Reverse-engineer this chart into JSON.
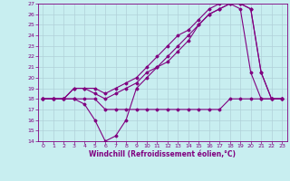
{
  "xlabel": "Windchill (Refroidissement éolien,°C)",
  "xlim": [
    -0.5,
    23.5
  ],
  "ylim": [
    14,
    27
  ],
  "xticks": [
    0,
    1,
    2,
    3,
    4,
    5,
    6,
    7,
    8,
    9,
    10,
    11,
    12,
    13,
    14,
    15,
    16,
    17,
    18,
    19,
    20,
    21,
    22,
    23
  ],
  "yticks": [
    14,
    15,
    16,
    17,
    18,
    19,
    20,
    21,
    22,
    23,
    24,
    25,
    26,
    27
  ],
  "background_color": "#c8eef0",
  "grid_color": "#b0d0d8",
  "line_color": "#800080",
  "line1_x": [
    0,
    1,
    2,
    3,
    4,
    5,
    6,
    7,
    8,
    9,
    10,
    11,
    12,
    13,
    14,
    15,
    16,
    17,
    18,
    19,
    20,
    21,
    22,
    23
  ],
  "line1_y": [
    18,
    18,
    18,
    18,
    18,
    18,
    17,
    17,
    17,
    17,
    17,
    17,
    17,
    17,
    17,
    17,
    17,
    17,
    18,
    18,
    18,
    18,
    18,
    18
  ],
  "line2_x": [
    0,
    1,
    2,
    3,
    4,
    5,
    6,
    7,
    8,
    9,
    10,
    11,
    12,
    13,
    14,
    15,
    16,
    17,
    18,
    19,
    20,
    21,
    22,
    23
  ],
  "line2_y": [
    18,
    18,
    18,
    18,
    17.5,
    16,
    14,
    14.5,
    16,
    19,
    20,
    21,
    21.5,
    22.5,
    23.5,
    25,
    26,
    26.5,
    27,
    26.5,
    20.5,
    18,
    18,
    18
  ],
  "line3_x": [
    0,
    1,
    2,
    3,
    4,
    5,
    6,
    7,
    8,
    9,
    10,
    11,
    12,
    13,
    14,
    15,
    16,
    17,
    18,
    19,
    20,
    21,
    22,
    23
  ],
  "line3_y": [
    18,
    18,
    18,
    19,
    19,
    18.5,
    18,
    18.5,
    19,
    19.5,
    20.5,
    21,
    22,
    23,
    24,
    25,
    26,
    26.5,
    27,
    27,
    26.5,
    20.5,
    18,
    18
  ],
  "line4_x": [
    0,
    1,
    2,
    3,
    4,
    5,
    6,
    7,
    8,
    9,
    10,
    11,
    12,
    13,
    14,
    15,
    16,
    17,
    18,
    19,
    20,
    21,
    22,
    23
  ],
  "line4_y": [
    18,
    18,
    18,
    19,
    19,
    19,
    18.5,
    19,
    19.5,
    20,
    21,
    22,
    23,
    24,
    24.5,
    25.5,
    26.5,
    27,
    27.5,
    27,
    26.5,
    20.5,
    18,
    18
  ]
}
